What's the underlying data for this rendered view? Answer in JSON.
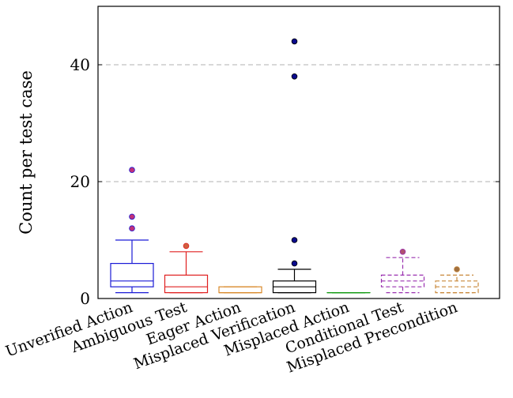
{
  "chart_data": {
    "type": "box",
    "title": "",
    "xlabel": "",
    "ylabel": "Count per test case",
    "ylim": [
      0,
      50
    ],
    "yticks": [
      0,
      20,
      40
    ],
    "grid": "horizontal-dashed",
    "categories": [
      "Unverified Action",
      "Ambiguous Test",
      "Eager Action",
      "Misplaced Verification",
      "Misplaced Action",
      "Conditional Test",
      "Misplaced Precondition"
    ],
    "series": [
      {
        "category": "Unverified Action",
        "color": "#1a1ad6",
        "outlier_color": "#c0307a",
        "dashed": false,
        "min": 1,
        "q1": 2,
        "median": 3,
        "q3": 6,
        "max": 10,
        "outliers": [
          12,
          14,
          22
        ]
      },
      {
        "category": "Ambiguous Test",
        "color": "#e02020",
        "outlier_color": "#d06040",
        "dashed": false,
        "min": 1,
        "q1": 1,
        "median": 2,
        "q3": 4,
        "max": 8,
        "outliers": [
          9
        ]
      },
      {
        "category": "Eager Action",
        "color": "#d9892a",
        "outlier_color": "#d9892a",
        "dashed": false,
        "min": 1,
        "q1": 1,
        "median": 1,
        "q3": 2,
        "max": 2,
        "outliers": []
      },
      {
        "category": "Misplaced Verification",
        "color": "#000000",
        "outlier_color": "#0a0a8c",
        "dashed": false,
        "min": 1,
        "q1": 1,
        "median": 2,
        "q3": 3,
        "max": 5,
        "outliers": [
          6,
          10,
          38,
          44
        ]
      },
      {
        "category": "Misplaced Action",
        "color": "#109a10",
        "outlier_color": "#109a10",
        "dashed": false,
        "min": 1,
        "q1": 1,
        "median": 1,
        "q3": 1,
        "max": 1,
        "outliers": []
      },
      {
        "category": "Conditional Test",
        "color": "#9a30b0",
        "outlier_color": "#b05070",
        "dashed": true,
        "min": 1,
        "q1": 2,
        "median": 3,
        "q3": 4,
        "max": 7,
        "outliers": [
          8
        ]
      },
      {
        "category": "Misplaced Precondition",
        "color": "#c8883a",
        "outlier_color": "#a07040",
        "dashed": true,
        "min": 1,
        "q1": 1,
        "median": 2,
        "q3": 3,
        "max": 4,
        "outliers": [
          5
        ]
      }
    ]
  }
}
